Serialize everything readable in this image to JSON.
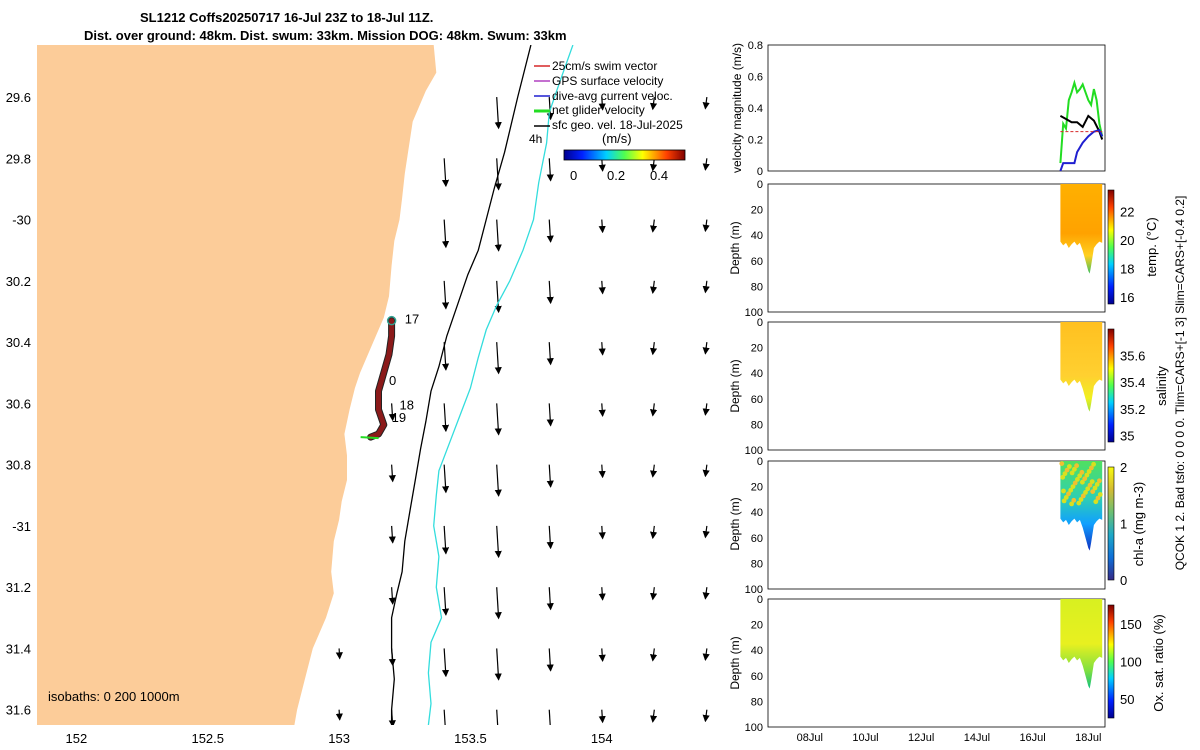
{
  "header": {
    "title_line1": "SL1212 Coffs20250717 16-Jul 23Z to 18-Jul 11Z.",
    "title_line2": "Dist. over ground: 48km. Dist. swum: 33km. Mission DOG: 48km. Swum: 33km"
  },
  "colors": {
    "land": "#fccc99",
    "glider_track": "#8b1a1a",
    "isobath_200": "#000000",
    "isobath_1000": "#33dddd",
    "swim_vector": "#d62728",
    "gps_velocity": "#b040c0",
    "dive_avg": "#1f1fd0",
    "net_velocity": "#22dd22",
    "sfc_geo": "#000000"
  },
  "chart_data": [
    {
      "type": "map",
      "title": "Glider track and surface geostrophic velocity",
      "xlim": [
        151.85,
        154.45
      ],
      "ylim": [
        -31.65,
        -29.43
      ],
      "xticks": [
        152,
        152.5,
        153,
        153.5,
        154
      ],
      "xtick_labels": [
        "152",
        "152.5",
        "153",
        "153.5",
        "154"
      ],
      "yticks": [
        -29.6,
        -29.8,
        -30,
        -30.2,
        -30.4,
        -30.6,
        -30.8,
        -31,
        -31.2,
        -31.4,
        -31.6
      ],
      "ytick_labels": [
        "29.6",
        "29.8",
        "-30",
        "30.2",
        "30.4",
        "30.6",
        "30.8",
        "-31",
        "31.2",
        "31.4",
        "31.6"
      ],
      "legend": {
        "position": "top-right",
        "entries": [
          "25cm/s swim vector",
          "GPS surface velocity",
          "dive-avg current veloc.",
          "net glider velocity",
          "sfc geo. vel. 18-Jul-2025"
        ],
        "colorbar_unit": "(m/s)",
        "colorbar_ticks": [
          "0",
          "0.2",
          "0.4"
        ],
        "colorbar_range": [
          0,
          0.5
        ],
        "interval_label": "4h"
      },
      "isobaths_label": "isobaths: 0   200  1000m",
      "coast_lon_lat": [
        [
          153.36,
          -29.43
        ],
        [
          153.37,
          -29.52
        ],
        [
          153.33,
          -29.58
        ],
        [
          153.28,
          -29.68
        ],
        [
          153.25,
          -29.85
        ],
        [
          153.24,
          -29.93
        ],
        [
          153.23,
          -30.0
        ],
        [
          153.21,
          -30.07
        ],
        [
          153.2,
          -30.15
        ],
        [
          153.19,
          -30.25
        ],
        [
          153.17,
          -30.32
        ],
        [
          153.15,
          -30.36
        ],
        [
          153.12,
          -30.42
        ],
        [
          153.08,
          -30.5
        ],
        [
          153.06,
          -30.55
        ],
        [
          153.04,
          -30.62
        ],
        [
          153.02,
          -30.7
        ],
        [
          153.03,
          -30.77
        ],
        [
          153.03,
          -30.85
        ],
        [
          153.01,
          -30.92
        ],
        [
          153.0,
          -30.98
        ],
        [
          152.98,
          -31.05
        ],
        [
          152.97,
          -31.15
        ],
        [
          152.98,
          -31.22
        ],
        [
          152.95,
          -31.3
        ],
        [
          152.9,
          -31.4
        ],
        [
          152.87,
          -31.5
        ],
        [
          152.84,
          -31.6
        ],
        [
          152.83,
          -31.65
        ]
      ],
      "isobath_200_lon_lat": [
        [
          153.73,
          -29.43
        ],
        [
          153.68,
          -29.6
        ],
        [
          153.63,
          -29.78
        ],
        [
          153.59,
          -29.9
        ],
        [
          153.56,
          -30.0
        ],
        [
          153.53,
          -30.1
        ],
        [
          153.49,
          -30.18
        ],
        [
          153.45,
          -30.28
        ],
        [
          153.41,
          -30.38
        ],
        [
          153.38,
          -30.48
        ],
        [
          153.35,
          -30.56
        ],
        [
          153.33,
          -30.66
        ],
        [
          153.31,
          -30.75
        ],
        [
          153.29,
          -30.85
        ],
        [
          153.27,
          -30.95
        ],
        [
          153.25,
          -31.05
        ],
        [
          153.24,
          -31.15
        ],
        [
          153.22,
          -31.22
        ],
        [
          153.2,
          -31.3
        ],
        [
          153.2,
          -31.4
        ],
        [
          153.21,
          -31.5
        ],
        [
          153.2,
          -31.6
        ],
        [
          153.2,
          -31.65
        ]
      ],
      "isobath_1000_lon_lat": [
        [
          153.89,
          -29.43
        ],
        [
          153.84,
          -29.55
        ],
        [
          153.8,
          -29.65
        ],
        [
          153.79,
          -29.75
        ],
        [
          153.76,
          -29.88
        ],
        [
          153.74,
          -30.0
        ],
        [
          153.7,
          -30.1
        ],
        [
          153.65,
          -30.2
        ],
        [
          153.6,
          -30.28
        ],
        [
          153.56,
          -30.36
        ],
        [
          153.53,
          -30.45
        ],
        [
          153.5,
          -30.55
        ],
        [
          153.46,
          -30.64
        ],
        [
          153.42,
          -30.73
        ],
        [
          153.38,
          -30.82
        ],
        [
          153.37,
          -30.9
        ],
        [
          153.36,
          -31.0
        ],
        [
          153.38,
          -31.1
        ],
        [
          153.37,
          -31.2
        ],
        [
          153.39,
          -31.3
        ],
        [
          153.35,
          -31.38
        ],
        [
          153.34,
          -31.48
        ],
        [
          153.35,
          -31.58
        ],
        [
          153.34,
          -31.65
        ]
      ],
      "track_lon_lat": [
        [
          153.2,
          -30.33
        ],
        [
          153.2,
          -30.38
        ],
        [
          153.19,
          -30.44
        ],
        [
          153.17,
          -30.5
        ],
        [
          153.15,
          -30.56
        ],
        [
          153.15,
          -30.62
        ],
        [
          153.17,
          -30.67
        ],
        [
          153.15,
          -30.7
        ],
        [
          153.12,
          -30.71
        ]
      ],
      "track_day_labels": [
        {
          "text": "17",
          "lon": 153.25,
          "lat": -30.34
        },
        {
          "text": "0",
          "lon": 153.19,
          "lat": -30.54
        },
        {
          "text": "18",
          "lon": 153.23,
          "lat": -30.62
        },
        {
          "text": "19",
          "lon": 153.2,
          "lat": -30.66
        }
      ]
    },
    {
      "type": "line",
      "ylabel": "velocity magnitude (m/s)",
      "ylim": [
        0,
        0.8
      ],
      "yticks": [
        0,
        0.2,
        0.4,
        0.6,
        0.8
      ],
      "xlim": [
        6.5,
        18.6
      ],
      "series": [
        {
          "name": "net glider velocity",
          "color": "#22dd22",
          "x": [
            17.0,
            17.1,
            17.2,
            17.3,
            17.4,
            17.5,
            17.6,
            17.7,
            17.8,
            17.9,
            18.0,
            18.1,
            18.2,
            18.3,
            18.4,
            18.5
          ],
          "y": [
            0.05,
            0.3,
            0.27,
            0.45,
            0.5,
            0.56,
            0.5,
            0.52,
            0.55,
            0.5,
            0.45,
            0.42,
            0.52,
            0.45,
            0.3,
            0.22
          ]
        },
        {
          "name": "sfc geo. vel.",
          "color": "#000000",
          "x": [
            17.0,
            17.2,
            17.4,
            17.6,
            17.8,
            18.0,
            18.2,
            18.4,
            18.5
          ],
          "y": [
            0.35,
            0.33,
            0.31,
            0.31,
            0.28,
            0.35,
            0.32,
            0.25,
            0.2
          ]
        },
        {
          "name": "dive-avg current veloc.",
          "color": "#1f1fd0",
          "x": [
            17.0,
            17.1,
            17.3,
            17.5,
            17.6,
            17.8,
            18.0,
            18.2,
            18.4,
            18.5
          ],
          "y": [
            0.0,
            0.05,
            0.05,
            0.05,
            0.12,
            0.18,
            0.22,
            0.25,
            0.26,
            0.22
          ]
        },
        {
          "name": "swim vector",
          "color": "#d62728",
          "x": [
            17.0,
            18.5
          ],
          "y": [
            0.25,
            0.25
          ]
        }
      ]
    },
    {
      "type": "heatmap",
      "ylabel": "Depth (m)",
      "clabel": "temp. (°C)",
      "ylim": [
        0,
        100
      ],
      "yticks": [
        0,
        20,
        40,
        60,
        80,
        100
      ],
      "clim": [
        15.5,
        23.5
      ],
      "cticks": [
        "16",
        "18",
        "20",
        "22"
      ]
    },
    {
      "type": "heatmap",
      "ylabel": "Depth (m)",
      "clabel": "salinity",
      "ylim": [
        0,
        100
      ],
      "yticks": [
        0,
        20,
        40,
        60,
        80,
        100
      ],
      "clim": [
        34.95,
        35.8
      ],
      "cticks": [
        "35",
        "35.2",
        "35.4",
        "35.6"
      ]
    },
    {
      "type": "heatmap",
      "ylabel": "Depth (m)",
      "clabel": "chl-a (mg m-3)",
      "ylim": [
        0,
        100
      ],
      "yticks": [
        0,
        20,
        40,
        60,
        80,
        100
      ],
      "clim": [
        0,
        2
      ],
      "cticks": [
        "0",
        "1",
        "2"
      ]
    },
    {
      "type": "heatmap",
      "ylabel": "Depth (m)",
      "clabel": "Ox. sat. ratio (%)",
      "ylim": [
        0,
        100
      ],
      "yticks": [
        0,
        20,
        40,
        60,
        80,
        100
      ],
      "clim": [
        25,
        175
      ],
      "cticks": [
        "50",
        "100",
        "150"
      ],
      "xticks": [
        8,
        10,
        12,
        14,
        16,
        18
      ],
      "xtick_labels": [
        "08Jul",
        "10Jul",
        "12Jul",
        "14Jul",
        "16Jul",
        "18Jul"
      ],
      "xlim": [
        6.5,
        18.6
      ]
    }
  ],
  "side_notes": {
    "line1": "QCOK 1  2. Bad tsfo: 0  0  0  0. Tlim=CARS+[-1 3] Slim=CARS+[-0.4 0.2]"
  }
}
